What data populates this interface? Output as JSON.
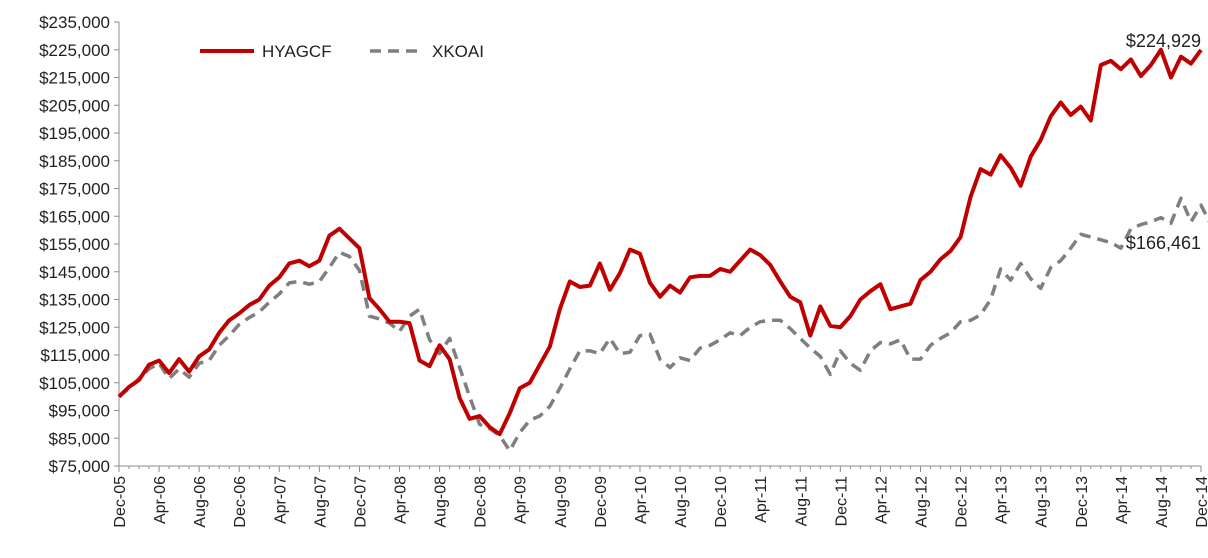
{
  "chart_data": {
    "type": "line",
    "title": "",
    "xlabel": "",
    "ylabel": "",
    "x_start": "Dec-05",
    "x_end": "Dec-14",
    "x_tick_labels": [
      "Dec-05",
      "Apr-06",
      "Aug-06",
      "Dec-06",
      "Apr-07",
      "Aug-07",
      "Dec-07",
      "Apr-08",
      "Aug-08",
      "Dec-08",
      "Apr-09",
      "Aug-09",
      "Dec-09",
      "Apr-10",
      "Aug-10",
      "Dec-10",
      "Apr-11",
      "Aug-11",
      "Dec-11",
      "Apr-12",
      "Aug-12",
      "Dec-12",
      "Apr-13",
      "Aug-13",
      "Dec-13",
      "Apr-14",
      "Aug-14",
      "Dec-14"
    ],
    "ylim": [
      75000,
      235000
    ],
    "y_tick_values": [
      75000,
      85000,
      95000,
      105000,
      115000,
      125000,
      135000,
      145000,
      155000,
      165000,
      175000,
      185000,
      195000,
      205000,
      215000,
      225000,
      235000
    ],
    "y_tick_labels": [
      "$75,000",
      "$85,000",
      "$95,000",
      "$105,000",
      "$115,000",
      "$125,000",
      "$135,000",
      "$145,000",
      "$155,000",
      "$165,000",
      "$175,000",
      "$185,000",
      "$195,000",
      "$205,000",
      "$215,000",
      "$225,000",
      "$235,000"
    ],
    "grid": false,
    "legend_position": "top-left",
    "series": [
      {
        "name": "HYAGCF",
        "color": "#c00000",
        "style": "solid",
        "end_label": "$224,929",
        "values": [
          100000,
          103500,
          106000,
          111500,
          113000,
          108500,
          113500,
          109000,
          114500,
          117000,
          123000,
          127500,
          130000,
          133000,
          135000,
          140000,
          143000,
          148000,
          149000,
          147000,
          149000,
          158000,
          160500,
          157000,
          153500,
          135500,
          131500,
          127000,
          127000,
          126500,
          113000,
          111000,
          118500,
          113500,
          99500,
          92000,
          93000,
          89000,
          86500,
          94000,
          103000,
          105000,
          111500,
          118000,
          131500,
          141500,
          139500,
          140000,
          148000,
          138500,
          144500,
          153000,
          151500,
          141000,
          136000,
          140000,
          137500,
          143000,
          143500,
          143500,
          146000,
          145000,
          149000,
          153000,
          151000,
          147500,
          141500,
          136000,
          134000,
          122000,
          132500,
          125500,
          125000,
          129000,
          135000,
          138000,
          140500,
          131500,
          132500,
          133500,
          142000,
          145000,
          149500,
          152500,
          157500,
          172000,
          182000,
          180000,
          187000,
          182500,
          176000,
          186500,
          192500,
          201000,
          206000,
          201500,
          204500,
          199500,
          219500,
          221000,
          218000,
          221500,
          215500,
          219500,
          225000,
          215000,
          222500,
          220000,
          224929
        ]
      },
      {
        "name": "XKOAI",
        "color": "#7f7f7f",
        "style": "dashed",
        "end_label": "$166,461",
        "values": [
          100000,
          103000,
          106500,
          110000,
          112000,
          106500,
          110000,
          107000,
          112000,
          113000,
          118500,
          122000,
          126000,
          128500,
          130500,
          134000,
          137000,
          141000,
          141500,
          140500,
          141500,
          146500,
          152000,
          150500,
          145500,
          129000,
          128000,
          126500,
          123500,
          129000,
          131500,
          120500,
          115500,
          121000,
          110500,
          100000,
          90000,
          88500,
          86000,
          80500,
          87000,
          91500,
          93000,
          96500,
          103000,
          110000,
          116500,
          116500,
          115500,
          121000,
          115500,
          116000,
          122000,
          122500,
          113500,
          110500,
          114000,
          113000,
          117500,
          118500,
          120500,
          123000,
          122000,
          125000,
          127000,
          127500,
          127500,
          124500,
          121000,
          117500,
          114500,
          108000,
          116500,
          112000,
          109500,
          116500,
          119500,
          119000,
          120500,
          113500,
          113500,
          118500,
          121000,
          123000,
          127000,
          127500,
          129500,
          135000,
          146000,
          142000,
          148000,
          142500,
          139000,
          146500,
          149000,
          153500,
          158500,
          157500,
          156500,
          155500,
          153500,
          160500,
          162000,
          163000,
          164500,
          162500,
          171500,
          163000,
          169000,
          162000,
          166461
        ]
      }
    ]
  }
}
